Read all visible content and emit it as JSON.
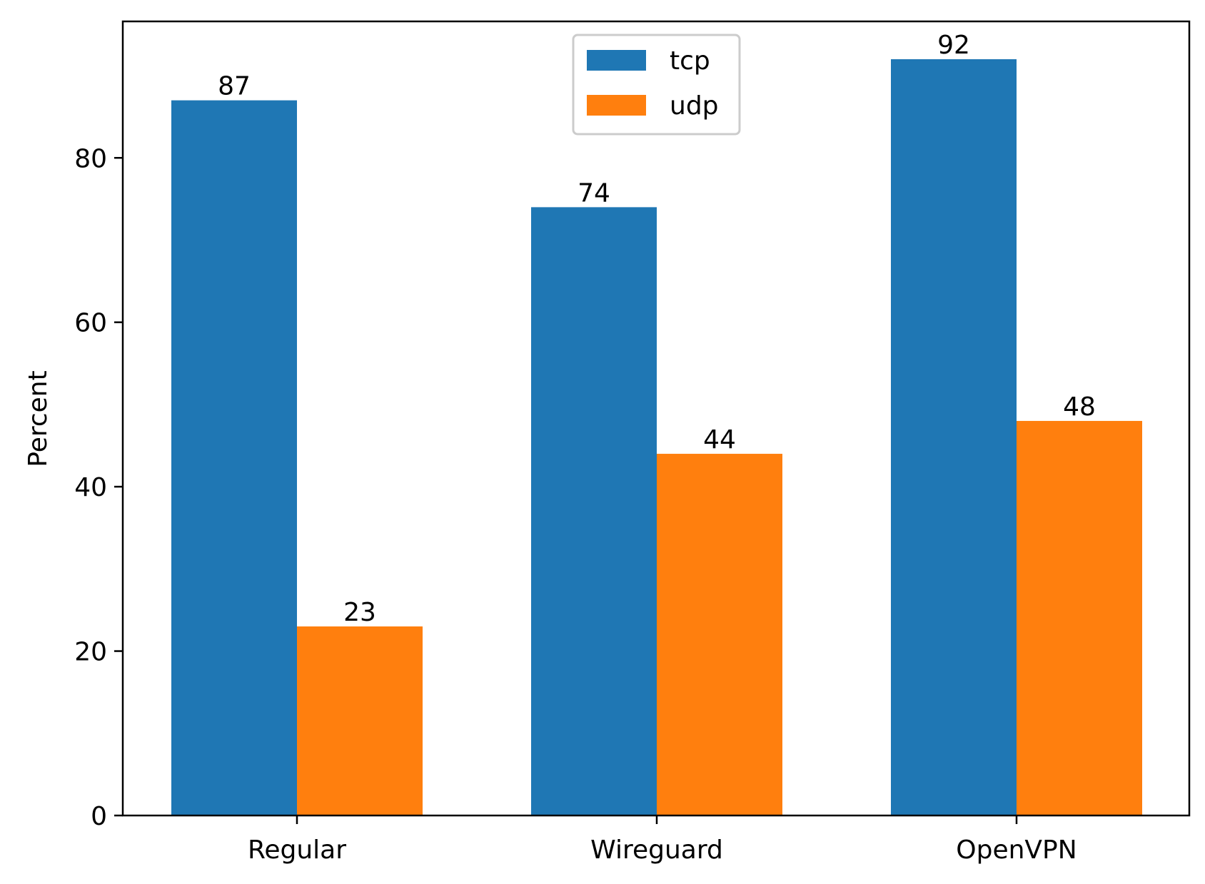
{
  "chart_data": {
    "type": "bar",
    "categories": [
      "Regular",
      "Wireguard",
      "OpenVPN"
    ],
    "series": [
      {
        "name": "tcp",
        "values": [
          87,
          74,
          92
        ],
        "color": "#1f77b4"
      },
      {
        "name": "udp",
        "values": [
          23,
          44,
          48
        ],
        "color": "#ff7f0e"
      }
    ],
    "title": "",
    "xlabel": "",
    "ylabel": "Percent",
    "ylim": [
      0,
      96.6
    ],
    "yticks": [
      0,
      20,
      40,
      60,
      80
    ],
    "grid": false,
    "legend_position": "upper center",
    "data_labels": true
  }
}
